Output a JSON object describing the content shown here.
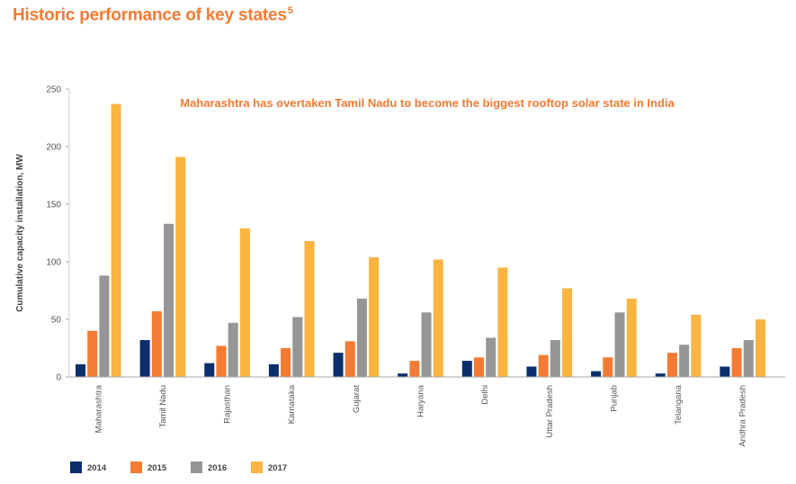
{
  "header": {
    "title": "Historic performance of key states",
    "title_sup": "5"
  },
  "chart_data": {
    "type": "bar",
    "title": "Historic performance of key states",
    "annotation": "Maharashtra has overtaken Tamil Nadu to become the biggest rooftop solar state in India",
    "ylabel": "Cumulative capacity installation, MW",
    "xlabel": "",
    "ylim": [
      0,
      250
    ],
    "yticks": [
      0,
      50,
      100,
      150,
      200,
      250
    ],
    "grid": false,
    "legend_position": "bottom-left",
    "categories": [
      "Maharashtra",
      "Tamil Nadu",
      "Rajasthan",
      "Karnataka",
      "Gujarat",
      "Haryana",
      "Delhi",
      "Uttar Pradesh",
      "Punjab",
      "Telangana",
      "Andhra Pradesh"
    ],
    "series": [
      {
        "name": "2014",
        "color": "#0b2f6b",
        "values": [
          11,
          32,
          12,
          11,
          21,
          3,
          14,
          9,
          5,
          3,
          9
        ]
      },
      {
        "name": "2015",
        "color": "#f47b33",
        "values": [
          40,
          57,
          27,
          25,
          31,
          14,
          17,
          19,
          17,
          21,
          25
        ]
      },
      {
        "name": "2016",
        "color": "#969696",
        "values": [
          88,
          133,
          47,
          52,
          68,
          56,
          34,
          32,
          56,
          28,
          32
        ]
      },
      {
        "name": "2017",
        "color": "#fbb440",
        "values": [
          237,
          191,
          129,
          118,
          104,
          102,
          95,
          77,
          68,
          54,
          50
        ]
      }
    ]
  }
}
